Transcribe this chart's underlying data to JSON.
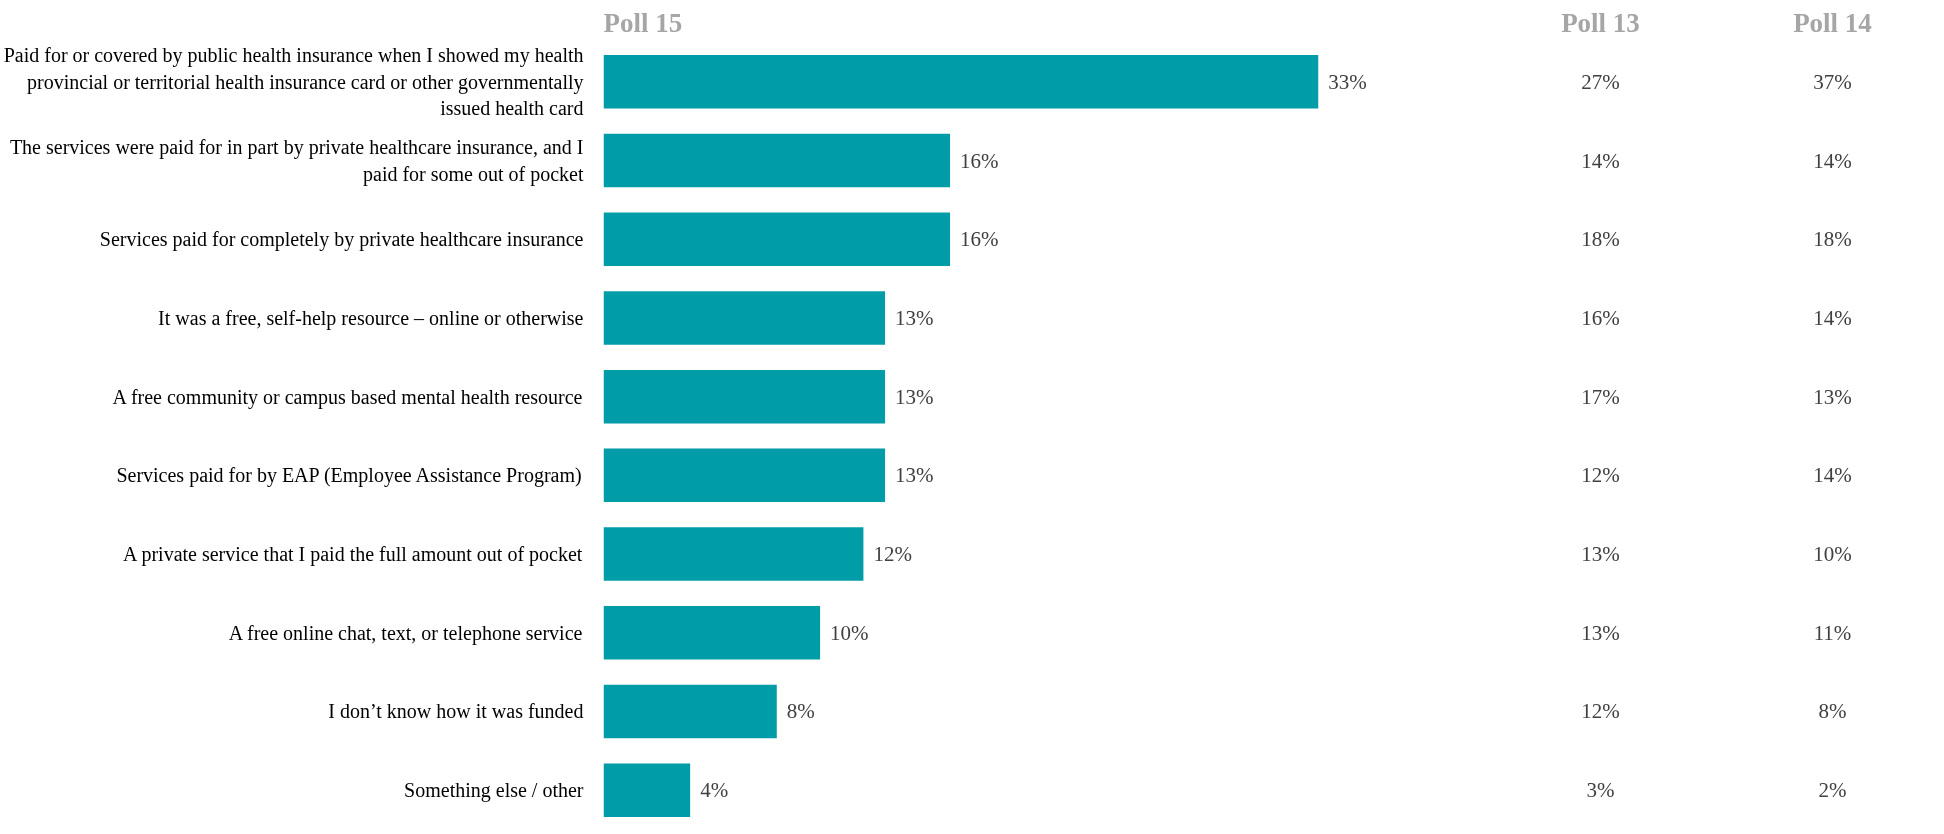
{
  "chart_data": [
    {
      "type": "bar",
      "orientation": "horizontal",
      "title": "Poll 15",
      "tick_labels": "y",
      "categories": [
        "Paid for or covered by public health insurance when I showed my health provincial or territorial health insurance card or other governmentally issued health card",
        "The services were paid for in part by private healthcare insurance, and I paid for some out of pocket",
        "Services paid for completely by private healthcare insurance",
        "It was a free, self-help resource – online or otherwise",
        "A free community or campus based mental health resource",
        "Services paid for by EAP (Employee Assistance Program)",
        "A private service that I paid the full amount out of pocket",
        "A free online chat, text, or telephone service",
        "I don’t know how it was funded",
        "Something else / other"
      ],
      "values": [
        33,
        16,
        16,
        13,
        13,
        13,
        12,
        10,
        8,
        4
      ],
      "value_labels": [
        "33%",
        "16%",
        "16%",
        "13%",
        "13%",
        "13%",
        "12%",
        "10%",
        "8%",
        "4%"
      ],
      "color": "#009ca8"
    },
    {
      "type": "other",
      "title": "Poll 13",
      "annotations": [
        "27%",
        "14%",
        "18%",
        "16%",
        "17%",
        "12%",
        "13%",
        "13%",
        "12%",
        "3%"
      ]
    },
    {
      "type": "other",
      "title": "Poll 14",
      "annotations": [
        "37%",
        "14%",
        "18%",
        "14%",
        "13%",
        "14%",
        "10%",
        "11%",
        "8%",
        "2%"
      ]
    }
  ]
}
